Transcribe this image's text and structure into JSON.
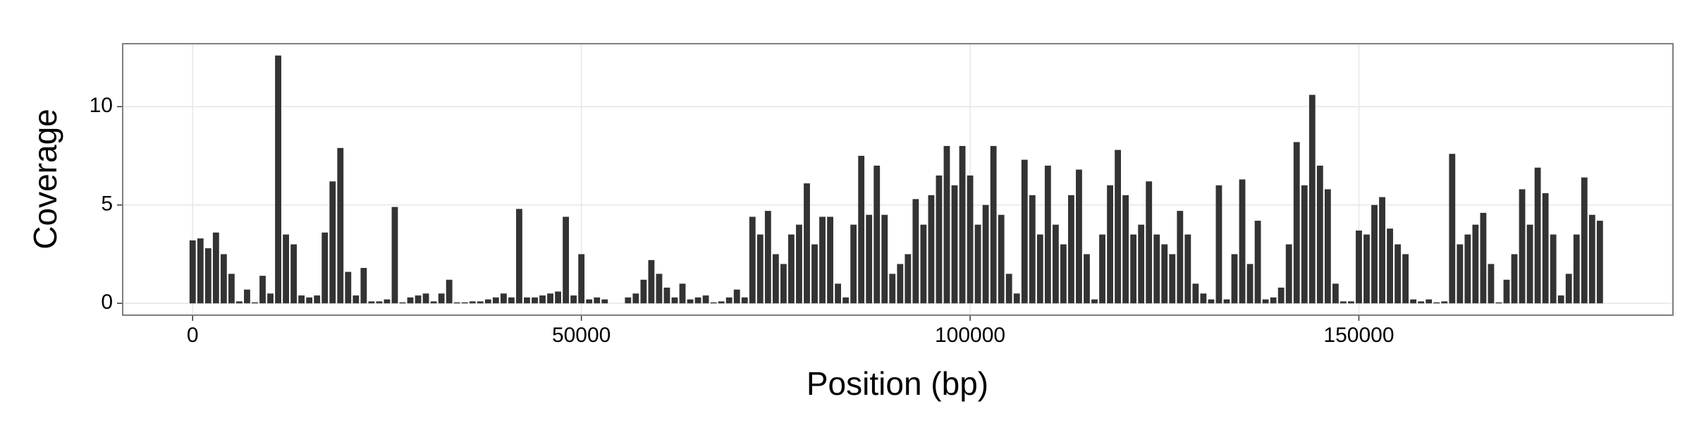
{
  "chart_data": {
    "type": "bar",
    "x_label": "Position (bp)",
    "y_label": "Coverage",
    "x": [
      0,
      1000,
      2000,
      3000,
      4000,
      5000,
      6000,
      7000,
      8000,
      9000,
      10000,
      11000,
      12000,
      13000,
      14000,
      15000,
      16000,
      17000,
      18000,
      19000,
      20000,
      21000,
      22000,
      23000,
      24000,
      25000,
      26000,
      27000,
      28000,
      29000,
      30000,
      31000,
      32000,
      33000,
      34000,
      35000,
      36000,
      37000,
      38000,
      39000,
      40000,
      41000,
      42000,
      43000,
      44000,
      45000,
      46000,
      47000,
      48000,
      49000,
      50000,
      51000,
      52000,
      53000,
      54000,
      55000,
      56000,
      57000,
      58000,
      59000,
      60000,
      61000,
      62000,
      63000,
      64000,
      65000,
      66000,
      67000,
      68000,
      69000,
      70000,
      71000,
      72000,
      73000,
      74000,
      75000,
      76000,
      77000,
      78000,
      79000,
      80000,
      81000,
      82000,
      83000,
      84000,
      85000,
      86000,
      87000,
      88000,
      89000,
      90000,
      91000,
      92000,
      93000,
      94000,
      95000,
      96000,
      97000,
      98000,
      99000,
      100000,
      101000,
      102000,
      103000,
      104000,
      105000,
      106000,
      107000,
      108000,
      109000,
      110000,
      111000,
      112000,
      113000,
      114000,
      115000,
      116000,
      117000,
      118000,
      119000,
      120000,
      121000,
      122000,
      123000,
      124000,
      125000,
      126000,
      127000,
      128000,
      129000,
      130000,
      131000,
      132000,
      133000,
      134000,
      135000,
      136000,
      137000,
      138000,
      139000,
      140000,
      141000,
      142000,
      143000,
      144000,
      145000,
      146000,
      147000,
      148000,
      149000,
      150000,
      151000,
      152000,
      153000,
      154000,
      155000,
      156000,
      157000,
      158000,
      159000,
      160000,
      161000,
      162000,
      163000,
      164000,
      165000,
      166000,
      167000,
      168000,
      169000,
      170000,
      171000,
      172000,
      173000,
      174000,
      175000,
      176000,
      177000,
      178000,
      179000,
      180000,
      181000
    ],
    "values": [
      3.2,
      3.3,
      2.8,
      3.6,
      2.5,
      1.5,
      0.1,
      0.7,
      0.05,
      1.4,
      0.5,
      12.6,
      3.5,
      3.0,
      0.4,
      0.3,
      0.4,
      3.6,
      6.2,
      7.9,
      1.6,
      0.4,
      1.8,
      0.1,
      0.1,
      0.2,
      4.9,
      0.05,
      0.3,
      0.4,
      0.5,
      0.1,
      0.5,
      1.2,
      0.05,
      0.05,
      0.1,
      0.1,
      0.2,
      0.3,
      0.5,
      0.3,
      4.8,
      0.3,
      0.3,
      0.4,
      0.5,
      0.6,
      4.4,
      0.4,
      2.5,
      0.2,
      0.3,
      0.2,
      0,
      0,
      0.3,
      0.5,
      1.2,
      2.2,
      1.5,
      0.8,
      0.3,
      1.0,
      0.2,
      0.3,
      0.4,
      0.05,
      0.1,
      0.3,
      0.7,
      0.3,
      4.4,
      3.5,
      4.7,
      2.5,
      2.0,
      3.5,
      4.0,
      6.1,
      3.0,
      4.4,
      4.4,
      1.0,
      0.3,
      4.0,
      7.5,
      4.5,
      7.0,
      4.5,
      1.5,
      2.0,
      2.5,
      5.3,
      4.0,
      5.5,
      6.5,
      8.0,
      6.0,
      8.0,
      6.5,
      4.0,
      5.0,
      8.0,
      4.5,
      1.5,
      0.5,
      7.3,
      5.5,
      3.5,
      7.0,
      4.0,
      3.0,
      5.5,
      6.8,
      2.5,
      0.2,
      3.5,
      6.0,
      7.8,
      5.5,
      3.5,
      4.0,
      6.2,
      3.5,
      3.0,
      2.5,
      4.7,
      3.5,
      1.0,
      0.5,
      0.2,
      6.0,
      0.2,
      2.5,
      6.3,
      2.0,
      4.2,
      0.2,
      0.3,
      0.8,
      3.0,
      8.2,
      6.0,
      10.6,
      7.0,
      5.8,
      1.0,
      0.1,
      0.1,
      3.7,
      3.5,
      5.0,
      5.4,
      3.8,
      3.0,
      2.5,
      0.2,
      0.1,
      0.2,
      0.05,
      0.1,
      7.6,
      3.0,
      3.5,
      4.0,
      4.6,
      2.0,
      0.05,
      1.2,
      2.5,
      5.8,
      4.0,
      6.9,
      5.6,
      3.5,
      0.4,
      1.5,
      3.5,
      6.4,
      4.5,
      4.2
    ],
    "bin_width": 1000,
    "color": "#333333",
    "xlim": [
      -9000,
      190400
    ],
    "ylim": [
      -0.6,
      13.2
    ],
    "xticks": [
      0,
      50000,
      100000,
      150000
    ],
    "yticks": [
      0,
      5,
      10
    ],
    "grid": true
  }
}
